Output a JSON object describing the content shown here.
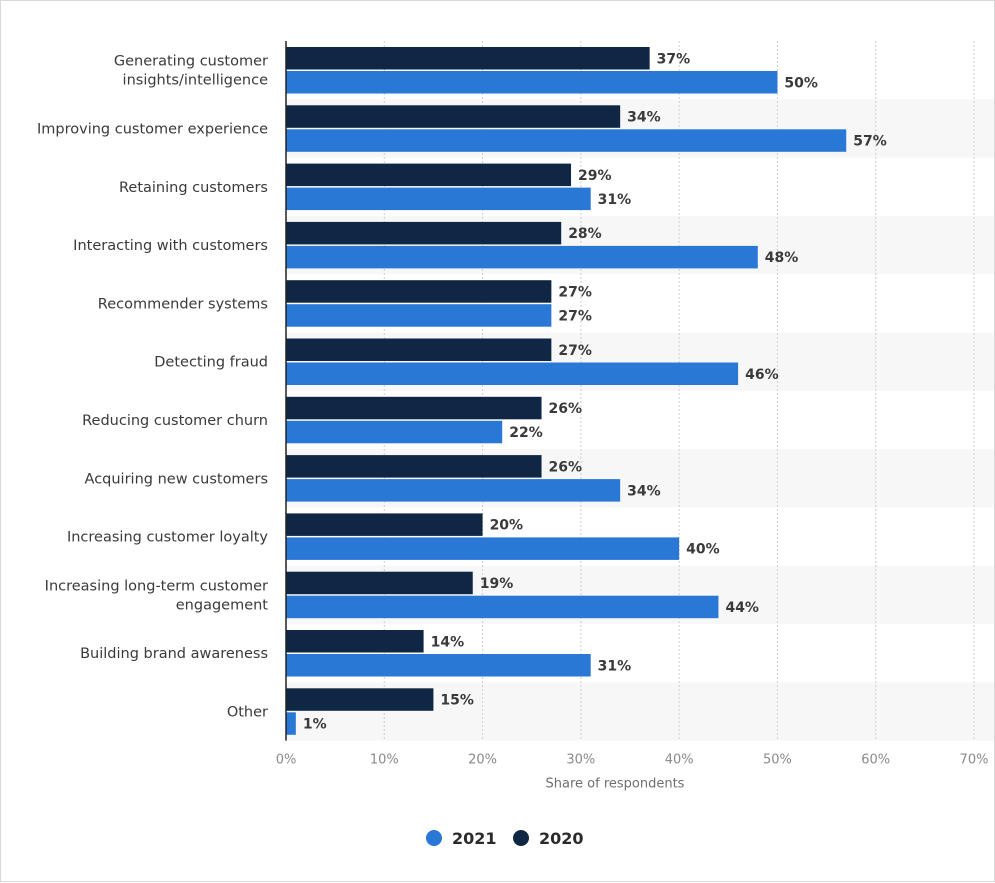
{
  "chart_data": {
    "type": "bar",
    "orientation": "horizontal",
    "categories": [
      [
        "Generating customer",
        "insights/intelligence"
      ],
      [
        "Improving customer experience"
      ],
      [
        "Retaining customers"
      ],
      [
        "Interacting with customers"
      ],
      [
        "Recommender systems"
      ],
      [
        "Detecting fraud"
      ],
      [
        "Reducing customer churn"
      ],
      [
        "Acquiring new customers"
      ],
      [
        "Increasing customer loyalty"
      ],
      [
        "Increasing long-term customer",
        "engagement"
      ],
      [
        "Building brand awareness"
      ],
      [
        "Other"
      ]
    ],
    "series": [
      {
        "name": "2020",
        "color": "#0f2744",
        "values": [
          37,
          34,
          29,
          28,
          27,
          27,
          26,
          26,
          20,
          19,
          14,
          15
        ]
      },
      {
        "name": "2021",
        "color": "#2a78d6",
        "values": [
          50,
          57,
          31,
          48,
          27,
          46,
          22,
          34,
          40,
          44,
          31,
          1
        ]
      }
    ],
    "value_suffix": "%",
    "xlabel": "Share of respondents",
    "xlim": [
      0,
      70
    ],
    "xticks": [
      0,
      10,
      20,
      30,
      40,
      50,
      60,
      70
    ],
    "tick_suffix": "%",
    "legend": {
      "position": "bottom",
      "order": [
        "2021",
        "2020"
      ]
    },
    "grid": true
  }
}
